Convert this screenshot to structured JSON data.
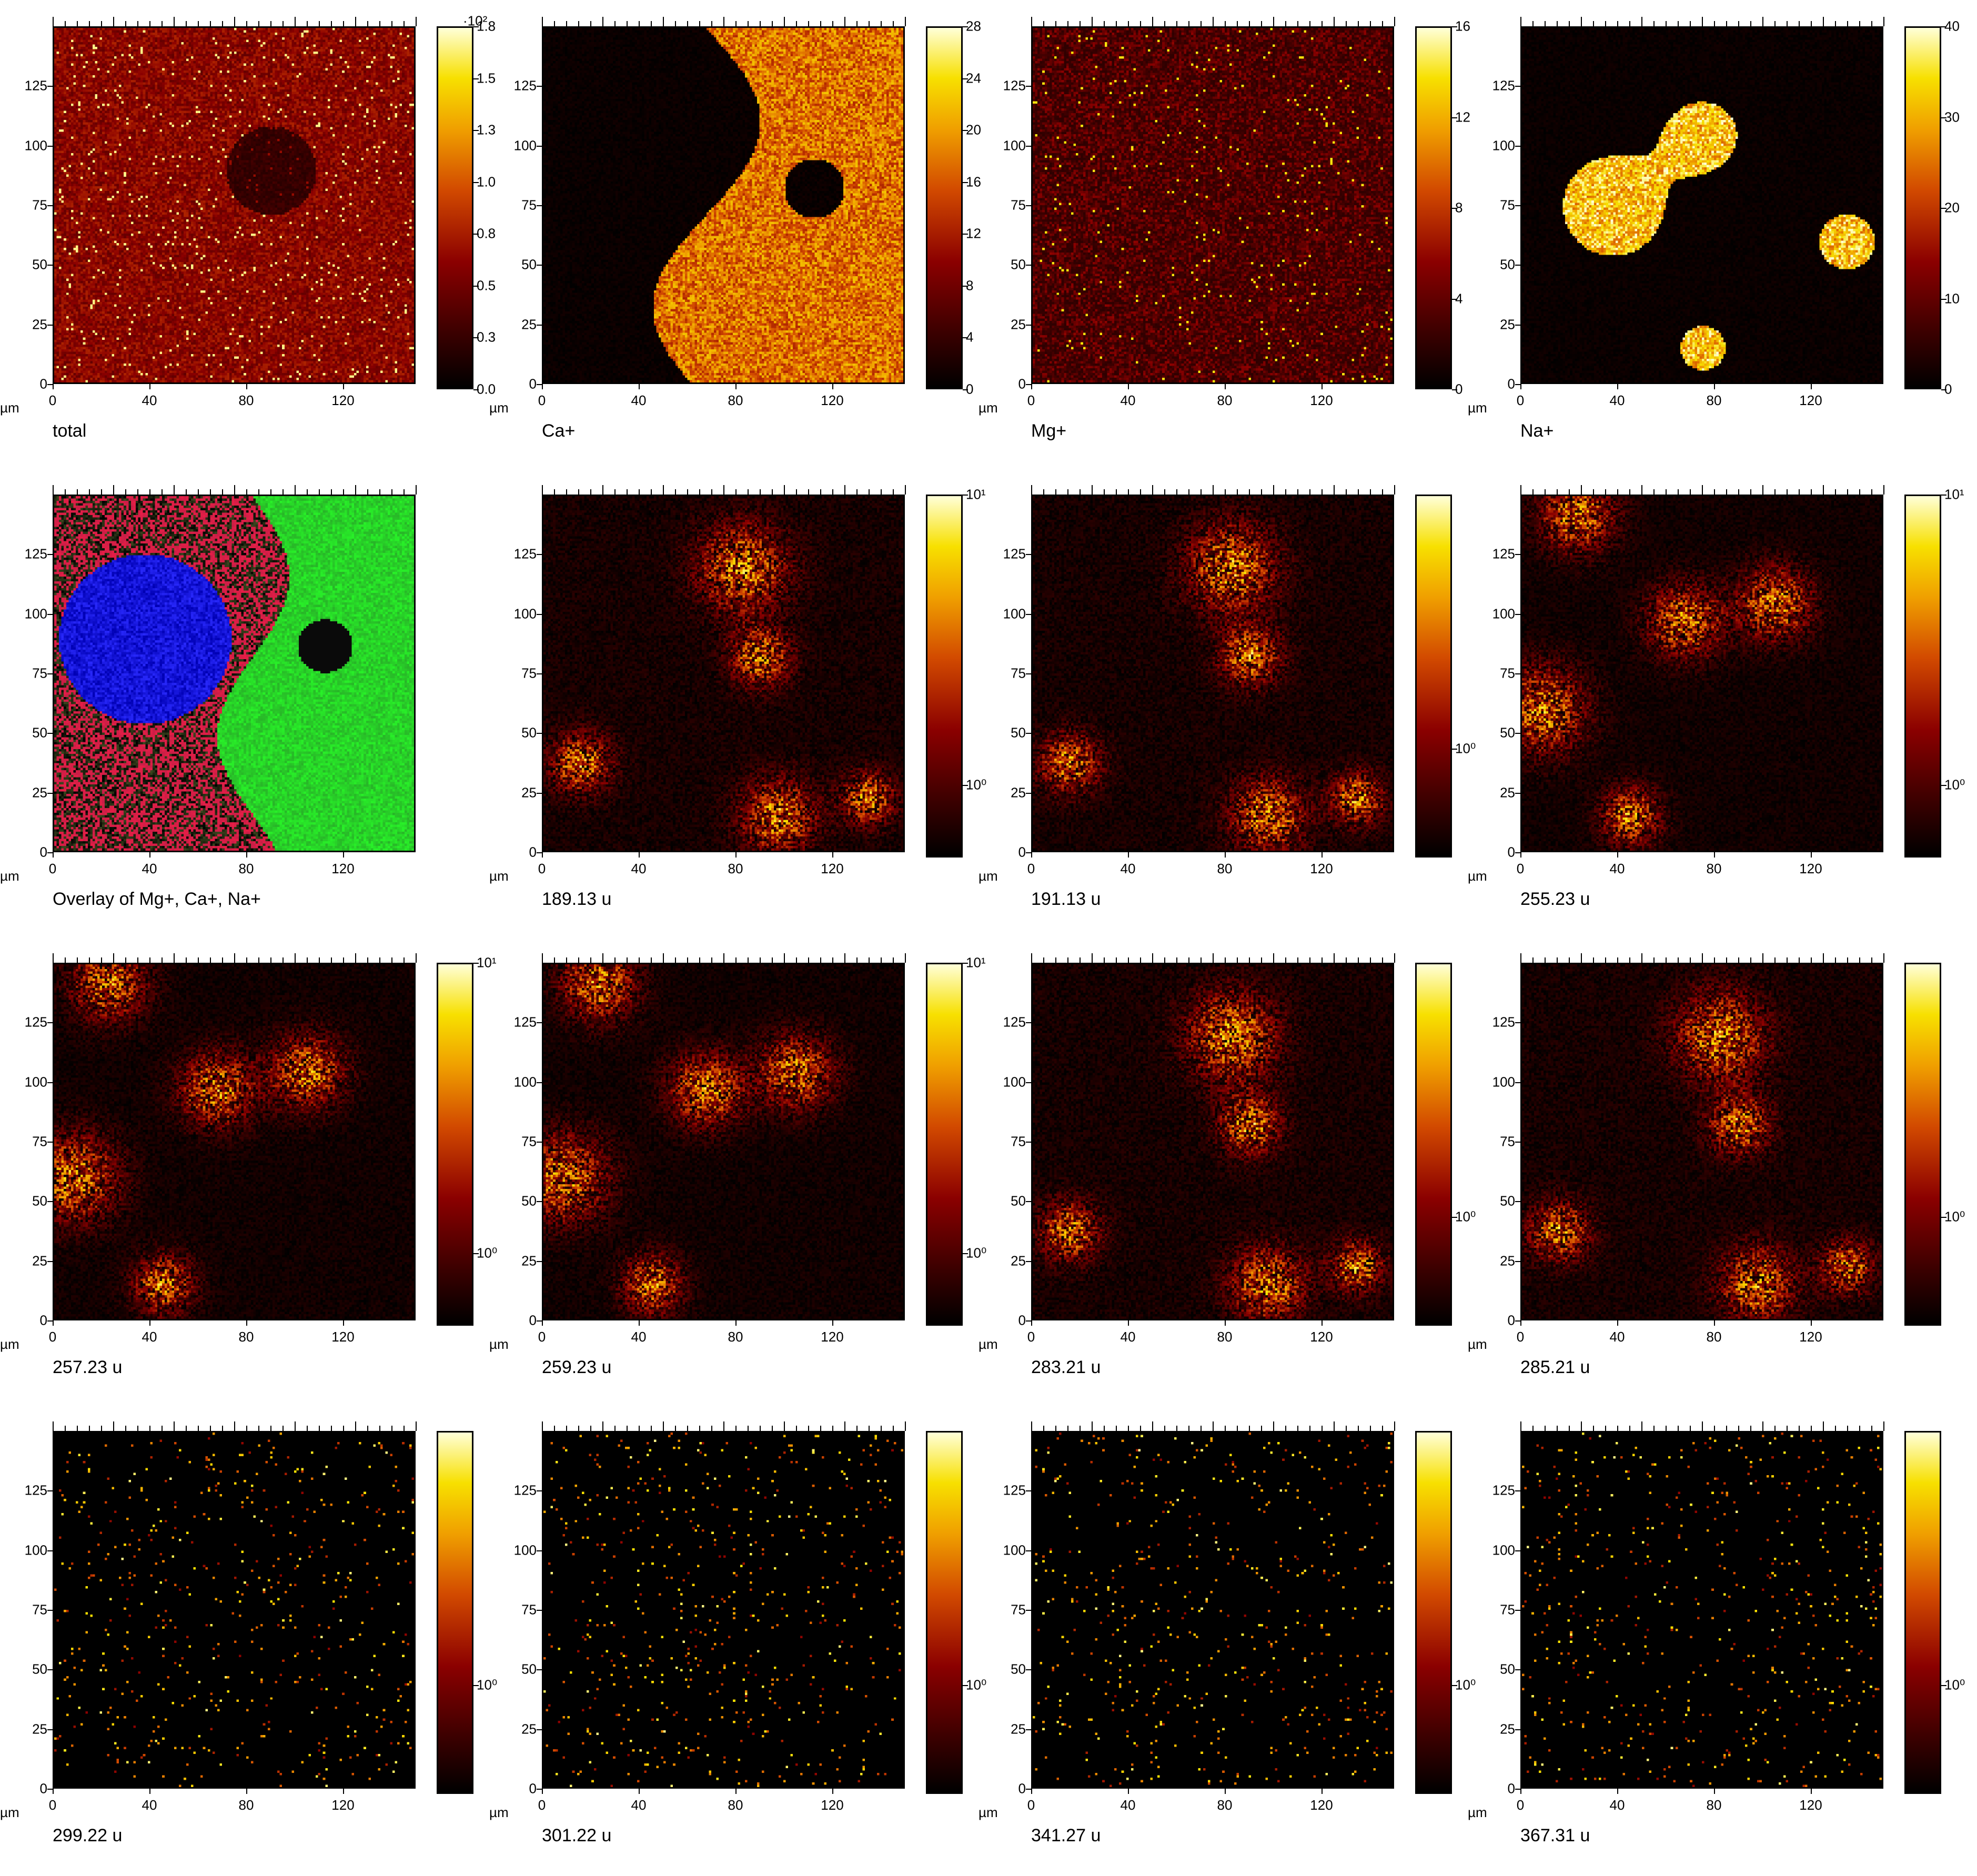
{
  "axis": {
    "unit": "µm",
    "ticks_x": [
      "0",
      "40",
      "80",
      "120"
    ],
    "ticks_y": [
      "0",
      "25",
      "50",
      "75",
      "100",
      "125"
    ],
    "range_um": [
      0,
      150
    ]
  },
  "panels": [
    {
      "caption": "total",
      "style": "total",
      "cbar_ticks": [
        "0.0",
        "0.3",
        "0.5",
        "0.8",
        "1.0",
        "1.3",
        "1.5",
        "1.8"
      ],
      "cbar_exp": "·10²",
      "seed": 11
    },
    {
      "caption": "Ca+",
      "style": "ca",
      "cbar_ticks": [
        "0",
        "4",
        "8",
        "12",
        "16",
        "20",
        "24",
        "28"
      ],
      "cbar_exp": "",
      "seed": 12
    },
    {
      "caption": "Mg+",
      "style": "mg",
      "cbar_ticks": [
        "0",
        "4",
        "8",
        "12",
        "16"
      ],
      "cbar_exp": "",
      "seed": 13
    },
    {
      "caption": "Na+",
      "style": "na",
      "cbar_ticks": [
        "0",
        "10",
        "20",
        "30",
        "40"
      ],
      "cbar_exp": "",
      "seed": 14
    },
    {
      "caption": "Overlay of Mg+, Ca+, Na+",
      "style": "overlay",
      "cbar_ticks": [],
      "cbar_exp": "",
      "seed": 15
    },
    {
      "caption": "189.13 u",
      "style": "organic1",
      "cbar_ticks": [
        "10⁰",
        "10¹"
      ],
      "cbar_exp": "",
      "seed": 16
    },
    {
      "caption": "191.13 u",
      "style": "organic1",
      "cbar_ticks": [
        "10⁰"
      ],
      "cbar_exp": "",
      "seed": 17
    },
    {
      "caption": "255.23 u",
      "style": "organic2",
      "cbar_ticks": [
        "10⁰",
        "10¹"
      ],
      "cbar_exp": "",
      "seed": 18
    },
    {
      "caption": "257.23 u",
      "style": "organic2",
      "cbar_ticks": [
        "10⁰",
        "10¹"
      ],
      "cbar_exp": "",
      "seed": 19
    },
    {
      "caption": "259.23 u",
      "style": "organic2",
      "cbar_ticks": [
        "10⁰",
        "10¹"
      ],
      "cbar_exp": "",
      "seed": 20
    },
    {
      "caption": "283.21 u",
      "style": "organic1",
      "cbar_ticks": [
        "10⁰"
      ],
      "cbar_exp": "",
      "seed": 21
    },
    {
      "caption": "285.21 u",
      "style": "organic1",
      "cbar_ticks": [
        "10⁰"
      ],
      "cbar_exp": "",
      "seed": 22
    },
    {
      "caption": "299.22 u",
      "style": "sparse",
      "cbar_ticks": [
        "10⁰"
      ],
      "cbar_exp": "",
      "seed": 23
    },
    {
      "caption": "301.22 u",
      "style": "sparse",
      "cbar_ticks": [
        "10⁰"
      ],
      "cbar_exp": "",
      "seed": 24
    },
    {
      "caption": "341.27 u",
      "style": "sparse",
      "cbar_ticks": [
        "10⁰"
      ],
      "cbar_exp": "",
      "seed": 25
    },
    {
      "caption": "367.31 u",
      "style": "sparse",
      "cbar_ticks": [
        "10⁰"
      ],
      "cbar_exp": "",
      "seed": 26
    }
  ]
}
